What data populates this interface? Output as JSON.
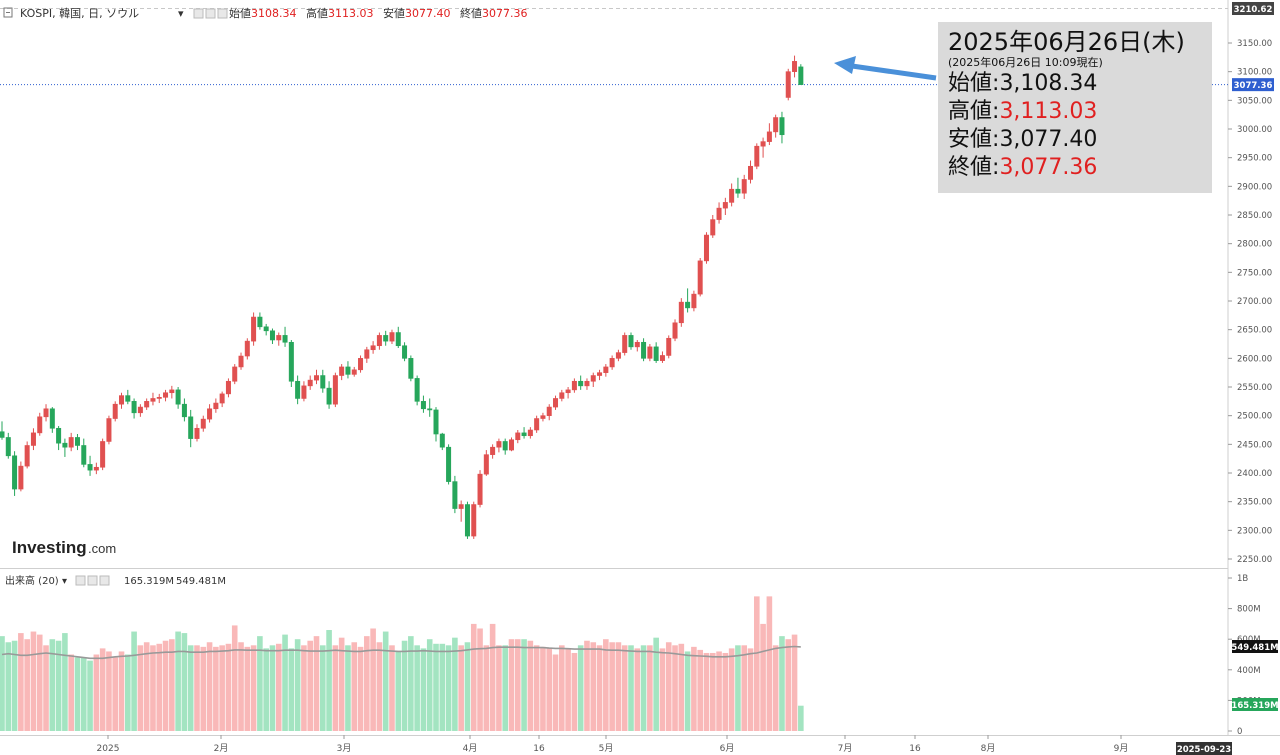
{
  "legend": {
    "symbol": "KOSPI, 韓国, 日, ソウル",
    "open_label": "始値",
    "open": "3108.34",
    "high_label": "高値",
    "high": "3113.03",
    "low_label": "安値",
    "low": "3077.40",
    "close_label": "終値",
    "close": "3077.36"
  },
  "volume_legend": {
    "label": "出来高 (20)",
    "value1": "165.319M",
    "value2": "549.481M"
  },
  "info_box": {
    "date": "2025年06月26日(木)",
    "asof": "(2025年06月26日 10:09現在)",
    "open_label": "始値",
    "open": "3,108.34",
    "high_label": "高値",
    "high": "3,113.03",
    "low_label": "安値",
    "low": "3,077.40",
    "close_label": "終値",
    "close": "3,077.36",
    "separator": ":"
  },
  "price_axis": {
    "ticks": [
      "3150.00",
      "3100.00",
      "3050.00",
      "3000.00",
      "2950.00",
      "2900.00",
      "2850.00",
      "2800.00",
      "2750.00",
      "2700.00",
      "2650.00",
      "2600.00",
      "2550.00",
      "2500.00",
      "2450.00",
      "2400.00",
      "2350.00",
      "2300.00",
      "2250.00"
    ],
    "top_tag": "3210.62",
    "last_tag": "3077.36"
  },
  "volume_axis": {
    "ticks": [
      "1B",
      "800M",
      "600M",
      "400M",
      "200M",
      "0"
    ],
    "tag_avg": "549.481M",
    "tag_vol": "165.319M"
  },
  "x_axis": {
    "labels": [
      "2025",
      "2月",
      "3月",
      "4月",
      "16",
      "5月",
      "6月",
      "7月",
      "16",
      "8月",
      "9月"
    ],
    "end_tag": "2025-09-23"
  },
  "logo": {
    "brand": "Investing",
    "suffix": ".com"
  },
  "colors": {
    "up": "#e05050",
    "up_fill": "#ffffff",
    "down": "#26a65b",
    "down_fill": "#26a65b",
    "vol_up": "#f9b8b8",
    "vol_down": "#a3e4c1",
    "ma": "#999999",
    "arrow": "#4a90d9",
    "last_line": "#2f5fd0"
  },
  "chart_data": [
    {
      "type": "candlestick",
      "title": "KOSPI, 韓国, 日, ソウル",
      "ylim": [
        2220,
        3220
      ],
      "candles": [
        [
          2472,
          2490,
          2458,
          2462
        ],
        [
          2462,
          2470,
          2425,
          2430
        ],
        [
          2430,
          2438,
          2360,
          2372
        ],
        [
          2372,
          2420,
          2368,
          2412
        ],
        [
          2412,
          2455,
          2408,
          2448
        ],
        [
          2448,
          2478,
          2440,
          2470
        ],
        [
          2470,
          2505,
          2465,
          2498
        ],
        [
          2498,
          2520,
          2490,
          2512
        ],
        [
          2512,
          2515,
          2470,
          2478
        ],
        [
          2478,
          2482,
          2440,
          2452
        ],
        [
          2452,
          2460,
          2428,
          2445
        ],
        [
          2445,
          2470,
          2438,
          2462
        ],
        [
          2462,
          2468,
          2440,
          2448
        ],
        [
          2448,
          2460,
          2410,
          2415
        ],
        [
          2415,
          2430,
          2395,
          2405
        ],
        [
          2405,
          2418,
          2398,
          2410
        ],
        [
          2410,
          2460,
          2405,
          2455
        ],
        [
          2455,
          2500,
          2450,
          2495
        ],
        [
          2495,
          2525,
          2490,
          2520
        ],
        [
          2520,
          2540,
          2512,
          2535
        ],
        [
          2535,
          2545,
          2520,
          2525
        ],
        [
          2525,
          2530,
          2495,
          2505
        ],
        [
          2505,
          2520,
          2498,
          2515
        ],
        [
          2515,
          2530,
          2510,
          2525
        ],
        [
          2525,
          2540,
          2518,
          2530
        ],
        [
          2530,
          2538,
          2522,
          2532
        ],
        [
          2532,
          2545,
          2525,
          2540
        ],
        [
          2540,
          2552,
          2530,
          2545
        ],
        [
          2545,
          2550,
          2512,
          2520
        ],
        [
          2520,
          2530,
          2490,
          2498
        ],
        [
          2498,
          2510,
          2445,
          2460
        ],
        [
          2460,
          2485,
          2455,
          2478
        ],
        [
          2478,
          2500,
          2472,
          2494
        ],
        [
          2494,
          2520,
          2488,
          2512
        ],
        [
          2512,
          2530,
          2505,
          2522
        ],
        [
          2522,
          2542,
          2515,
          2538
        ],
        [
          2538,
          2565,
          2532,
          2560
        ],
        [
          2560,
          2590,
          2555,
          2585
        ],
        [
          2585,
          2610,
          2580,
          2604
        ],
        [
          2604,
          2635,
          2598,
          2630
        ],
        [
          2630,
          2680,
          2622,
          2672
        ],
        [
          2672,
          2680,
          2650,
          2655
        ],
        [
          2655,
          2660,
          2640,
          2648
        ],
        [
          2648,
          2652,
          2625,
          2632
        ],
        [
          2632,
          2645,
          2622,
          2640
        ],
        [
          2640,
          2655,
          2620,
          2628
        ],
        [
          2628,
          2632,
          2550,
          2560
        ],
        [
          2560,
          2570,
          2520,
          2530
        ],
        [
          2530,
          2560,
          2525,
          2552
        ],
        [
          2552,
          2570,
          2545,
          2562
        ],
        [
          2562,
          2580,
          2555,
          2570
        ],
        [
          2570,
          2580,
          2540,
          2548
        ],
        [
          2548,
          2560,
          2512,
          2520
        ],
        [
          2520,
          2575,
          2515,
          2570
        ],
        [
          2570,
          2590,
          2562,
          2585
        ],
        [
          2585,
          2595,
          2565,
          2572
        ],
        [
          2572,
          2585,
          2568,
          2580
        ],
        [
          2580,
          2605,
          2575,
          2600
        ],
        [
          2600,
          2620,
          2592,
          2615
        ],
        [
          2615,
          2630,
          2608,
          2622
        ],
        [
          2622,
          2645,
          2615,
          2640
        ],
        [
          2640,
          2648,
          2622,
          2630
        ],
        [
          2630,
          2650,
          2625,
          2645
        ],
        [
          2645,
          2655,
          2618,
          2622
        ],
        [
          2622,
          2628,
          2595,
          2600
        ],
        [
          2600,
          2605,
          2560,
          2565
        ],
        [
          2565,
          2570,
          2518,
          2525
        ],
        [
          2525,
          2535,
          2505,
          2512
        ],
        [
          2512,
          2530,
          2498,
          2510
        ],
        [
          2510,
          2515,
          2455,
          2468
        ],
        [
          2468,
          2470,
          2440,
          2445
        ],
        [
          2445,
          2450,
          2380,
          2385
        ],
        [
          2385,
          2395,
          2330,
          2338
        ],
        [
          2338,
          2352,
          2315,
          2345
        ],
        [
          2345,
          2350,
          2285,
          2290
        ],
        [
          2290,
          2350,
          2285,
          2345
        ],
        [
          2345,
          2405,
          2340,
          2398
        ],
        [
          2398,
          2440,
          2395,
          2432
        ],
        [
          2432,
          2450,
          2425,
          2445
        ],
        [
          2445,
          2460,
          2436,
          2455
        ],
        [
          2455,
          2460,
          2432,
          2440
        ],
        [
          2440,
          2462,
          2438,
          2458
        ],
        [
          2458,
          2475,
          2452,
          2470
        ],
        [
          2470,
          2480,
          2460,
          2465
        ],
        [
          2465,
          2480,
          2460,
          2475
        ],
        [
          2475,
          2500,
          2470,
          2495
        ],
        [
          2495,
          2505,
          2490,
          2500
        ],
        [
          2500,
          2520,
          2492,
          2515
        ],
        [
          2515,
          2535,
          2510,
          2530
        ],
        [
          2530,
          2545,
          2525,
          2540
        ],
        [
          2540,
          2550,
          2530,
          2545
        ],
        [
          2545,
          2565,
          2540,
          2560
        ],
        [
          2560,
          2570,
          2545,
          2552
        ],
        [
          2552,
          2565,
          2545,
          2560
        ],
        [
          2560,
          2575,
          2550,
          2570
        ],
        [
          2570,
          2580,
          2562,
          2575
        ],
        [
          2575,
          2590,
          2568,
          2585
        ],
        [
          2585,
          2605,
          2580,
          2600
        ],
        [
          2600,
          2615,
          2595,
          2610
        ],
        [
          2610,
          2645,
          2605,
          2640
        ],
        [
          2640,
          2645,
          2615,
          2620
        ],
        [
          2620,
          2632,
          2612,
          2628
        ],
        [
          2628,
          2635,
          2595,
          2600
        ],
        [
          2600,
          2625,
          2595,
          2620
        ],
        [
          2620,
          2628,
          2592,
          2596
        ],
        [
          2596,
          2612,
          2592,
          2605
        ],
        [
          2605,
          2640,
          2600,
          2635
        ],
        [
          2635,
          2668,
          2630,
          2662
        ],
        [
          2662,
          2705,
          2655,
          2698
        ],
        [
          2698,
          2722,
          2680,
          2688
        ],
        [
          2688,
          2718,
          2682,
          2712
        ],
        [
          2712,
          2775,
          2708,
          2770
        ],
        [
          2770,
          2820,
          2765,
          2815
        ],
        [
          2815,
          2850,
          2810,
          2842
        ],
        [
          2842,
          2872,
          2835,
          2862
        ],
        [
          2862,
          2880,
          2850,
          2872
        ],
        [
          2872,
          2905,
          2865,
          2895
        ],
        [
          2895,
          2915,
          2880,
          2888
        ],
        [
          2888,
          2920,
          2878,
          2912
        ],
        [
          2912,
          2945,
          2905,
          2935
        ],
        [
          2935,
          2975,
          2930,
          2970
        ],
        [
          2970,
          2985,
          2950,
          2978
        ],
        [
          2978,
          3010,
          2972,
          2995
        ],
        [
          2995,
          3025,
          2985,
          3020
        ],
        [
          3020,
          3030,
          2975,
          2990
        ],
        [
          3055,
          3105,
          3050,
          3100
        ],
        [
          3100,
          3128,
          3090,
          3118
        ],
        [
          3108.34,
          3113.03,
          3077.4,
          3077.36
        ]
      ],
      "volume": [
        620,
        580,
        590,
        640,
        600,
        650,
        630,
        560,
        600,
        590,
        640,
        500,
        480,
        480,
        460,
        500,
        540,
        520,
        480,
        520,
        500,
        650,
        560,
        580,
        560,
        570,
        590,
        600,
        650,
        640,
        560,
        560,
        550,
        580,
        550,
        560,
        570,
        690,
        580,
        550,
        560,
        620,
        540,
        560,
        570,
        630,
        540,
        600,
        560,
        590,
        620,
        560,
        660,
        560,
        610,
        560,
        580,
        550,
        620,
        670,
        580,
        650,
        560,
        520,
        590,
        620,
        560,
        540,
        600,
        570,
        570,
        560,
        610,
        560,
        580,
        700,
        670,
        560,
        700,
        560,
        560,
        600,
        600,
        600,
        590,
        560,
        550,
        540,
        500,
        560,
        540,
        510,
        560,
        590,
        580,
        560,
        600,
        580,
        580,
        560,
        560,
        540,
        560,
        560,
        610,
        540,
        580,
        560,
        570,
        520,
        550,
        530,
        510,
        510,
        520,
        510,
        540,
        560,
        560,
        540,
        880,
        700,
        880,
        560,
        620,
        600,
        630,
        165.319
      ],
      "ma": [
        500,
        505,
        500,
        495,
        495,
        500,
        505,
        510,
        505,
        500,
        495,
        490,
        485,
        480,
        475,
        475,
        475,
        480,
        485,
        488,
        490,
        495,
        500,
        505,
        510,
        512,
        515,
        515,
        520,
        520,
        515,
        515,
        515,
        520,
        520,
        522,
        525,
        530,
        530,
        528,
        528,
        528,
        525,
        525,
        525,
        528,
        528,
        528,
        525,
        522,
        522,
        522,
        525,
        528,
        525,
        522,
        520,
        520,
        525,
        528,
        528,
        525,
        522,
        520,
        520,
        522,
        522,
        525,
        522,
        520,
        520,
        520,
        522,
        525,
        530,
        535,
        538,
        540,
        545,
        548,
        548,
        548,
        548,
        545,
        545,
        545,
        545,
        542,
        540,
        540,
        538,
        535,
        535,
        535,
        535,
        535,
        530,
        528,
        528,
        525,
        522,
        520,
        520,
        520,
        515,
        512,
        510,
        505,
        500,
        495,
        492,
        490,
        488,
        485,
        485,
        485,
        488,
        492,
        498,
        505,
        510,
        520,
        530,
        540,
        545,
        550,
        552,
        549.481
      ]
    }
  ]
}
